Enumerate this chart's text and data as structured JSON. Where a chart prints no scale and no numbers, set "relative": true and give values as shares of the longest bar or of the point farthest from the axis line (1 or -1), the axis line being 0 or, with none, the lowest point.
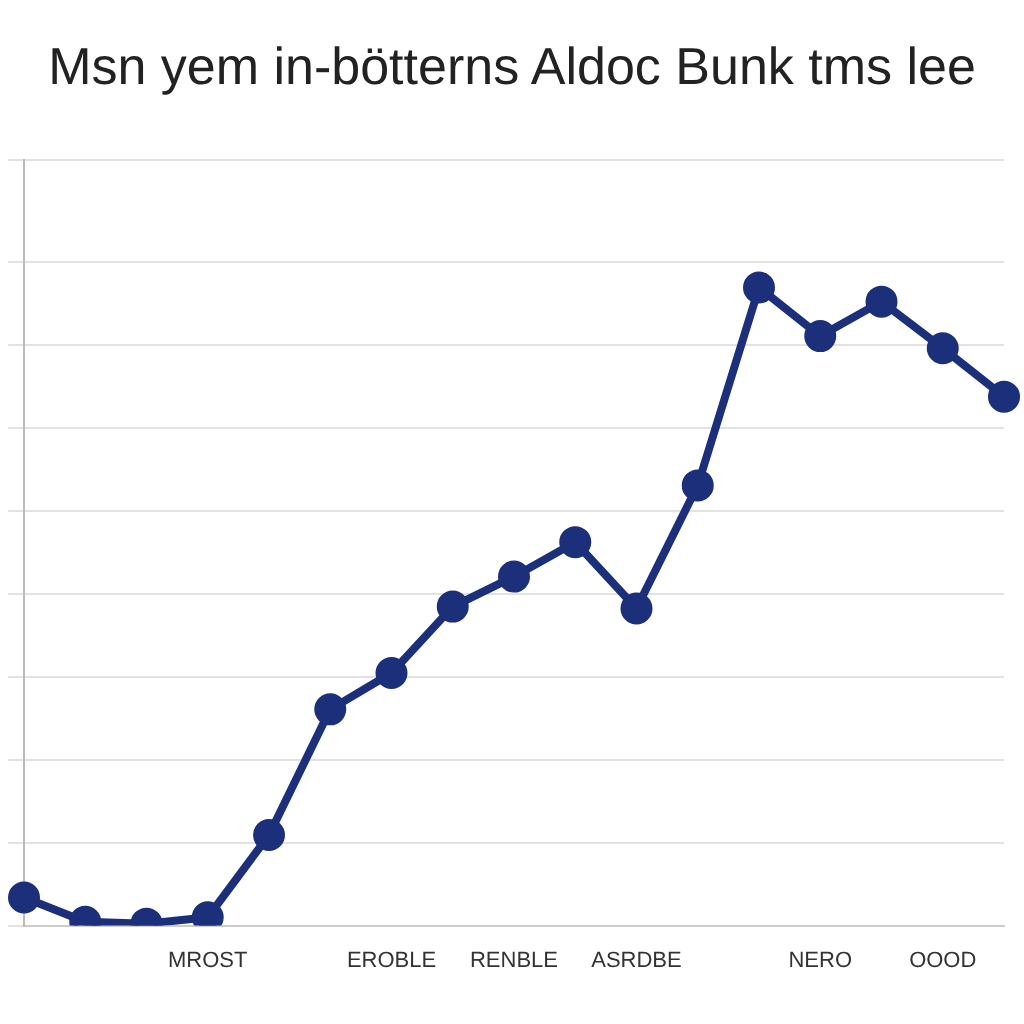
{
  "chart_data": {
    "type": "line",
    "title": "Msn yem in-bötterns Aldoc Bunk tms lee",
    "relative": true,
    "categories": [
      null,
      null,
      null,
      "MROST",
      null,
      null,
      "EROBLE",
      null,
      "RENBLE",
      null,
      "ASRDBE",
      null,
      null,
      "NERO",
      null,
      "OOOD",
      null
    ],
    "series": [
      {
        "color": "#1b2f7a",
        "values": [
          0.044,
          0.006,
          0.003,
          0.013,
          0.142,
          0.339,
          0.396,
          0.5,
          0.547,
          0.601,
          0.497,
          0.69,
          1,
          0.924,
          0.978,
          0.905,
          0.829
        ]
      }
    ],
    "grid": "y",
    "legend": false,
    "marker": "circle",
    "line_style": "solid"
  }
}
